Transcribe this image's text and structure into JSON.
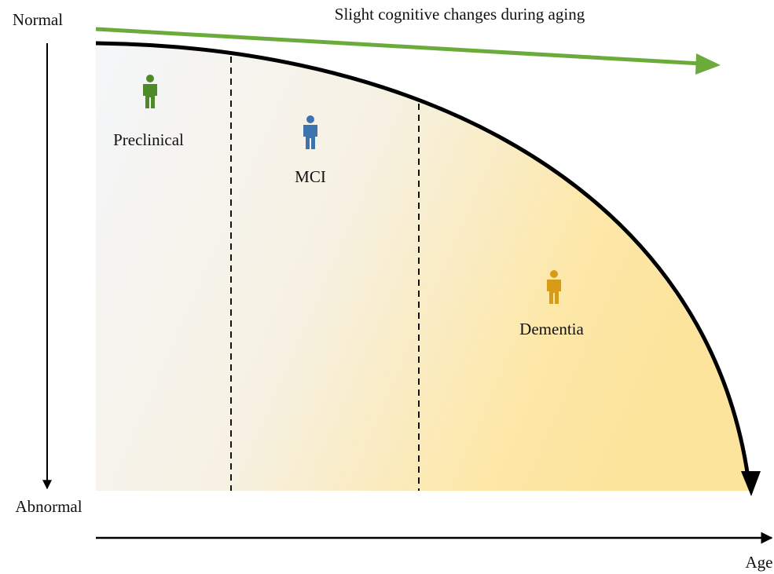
{
  "axes": {
    "y_top": "Normal",
    "y_bottom": "Abnormal",
    "x": "Age"
  },
  "trend": "Slight cognitive changes during aging",
  "stages": [
    {
      "label": "Preclinical"
    },
    {
      "label": "MCI"
    },
    {
      "label": "Dementia"
    }
  ]
}
